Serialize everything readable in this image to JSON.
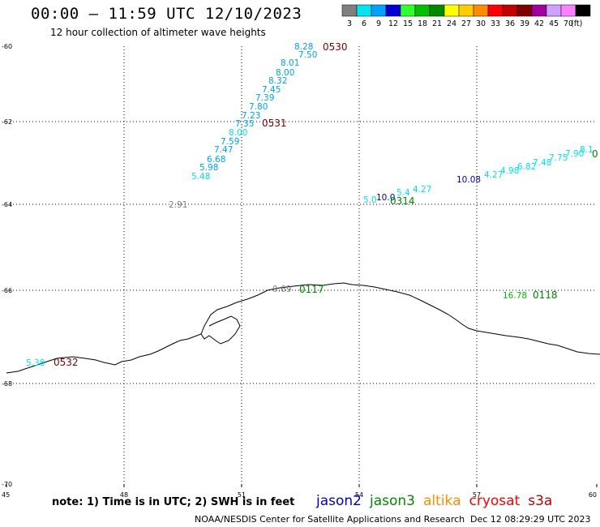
{
  "title": "00:00 – 11:59 UTC 12/10/2023",
  "subtitle": "12 hour collection of altimeter wave heights",
  "colorbar": {
    "unit": "(ft)",
    "bins": [
      {
        "label": "3",
        "color": "#7f7f7f"
      },
      {
        "label": "6",
        "color": "#00e5ee"
      },
      {
        "label": "9",
        "color": "#00a0ff"
      },
      {
        "label": "12",
        "color": "#0000d0"
      },
      {
        "label": "15",
        "color": "#30ff30"
      },
      {
        "label": "18",
        "color": "#00c000"
      },
      {
        "label": "21",
        "color": "#008800"
      },
      {
        "label": "24",
        "color": "#ffff00"
      },
      {
        "label": "27",
        "color": "#ffcc00"
      },
      {
        "label": "30",
        "color": "#ff8c00"
      },
      {
        "label": "33",
        "color": "#ff0000"
      },
      {
        "label": "36",
        "color": "#c00000"
      },
      {
        "label": "39",
        "color": "#800000"
      },
      {
        "label": "42",
        "color": "#a000a0"
      },
      {
        "label": "45",
        "color": "#d0a0ff"
      },
      {
        "label": "70",
        "color": "#ff80ff"
      },
      {
        "label": "",
        "color": "#000000"
      }
    ]
  },
  "axes": {
    "lon_ticks": [
      "45",
      "48",
      "51",
      "54",
      "57",
      "60"
    ],
    "lat_ticks": [
      "-60",
      "-62",
      "-64",
      "-66",
      "-68",
      "-70"
    ]
  },
  "tracks": [
    {
      "satellite": "cryosat",
      "time_labels": [
        {
          "text": "0530",
          "color": "#800000"
        },
        {
          "text": "0531",
          "color": "#800000"
        }
      ],
      "values": [
        "8.28",
        "7.50",
        "8.01",
        "8.00",
        "8.32",
        "7.45",
        "7.39",
        "7.80",
        "7.23",
        "7.35",
        "8.00",
        "7.59",
        "7.47",
        "6.68",
        "5.98",
        "5.48"
      ]
    },
    {
      "satellite": "jason3",
      "time_labels": [
        {
          "text": "0314",
          "color": "#008800"
        },
        {
          "text": "0",
          "color": "#008800"
        }
      ],
      "values": [
        "10.08",
        "4.27",
        "4.98",
        "6.82",
        "7.48",
        "7.75",
        "7.90",
        "8.1",
        "5.0",
        "10.0",
        "5.4",
        "4.27"
      ]
    },
    {
      "satellite": "other",
      "values": [
        "2.91",
        "0.69",
        "16.78",
        "5.38"
      ],
      "time_labels": [
        {
          "text": "0117",
          "color": "#008800"
        },
        {
          "text": "0118",
          "color": "#008800"
        },
        {
          "text": "0532",
          "color": "#800000"
        }
      ]
    }
  ],
  "legend": {
    "satellites": [
      {
        "name": "jason2",
        "color": "#0000d0"
      },
      {
        "name": "jason3",
        "color": "#008800"
      },
      {
        "name": "altika",
        "color": "#ff8c00"
      },
      {
        "name": "cryosat",
        "color": "#ff0000"
      },
      {
        "name": "s3a",
        "color": "#c00000"
      }
    ]
  },
  "notes": "note: 1) Time is in UTC; 2) SWH is in feet",
  "credit": "NOAA/NESDIS Center for Satellite Applications and Research",
  "datestamp": "Dec 12 08:29:29 UTC 2023"
}
